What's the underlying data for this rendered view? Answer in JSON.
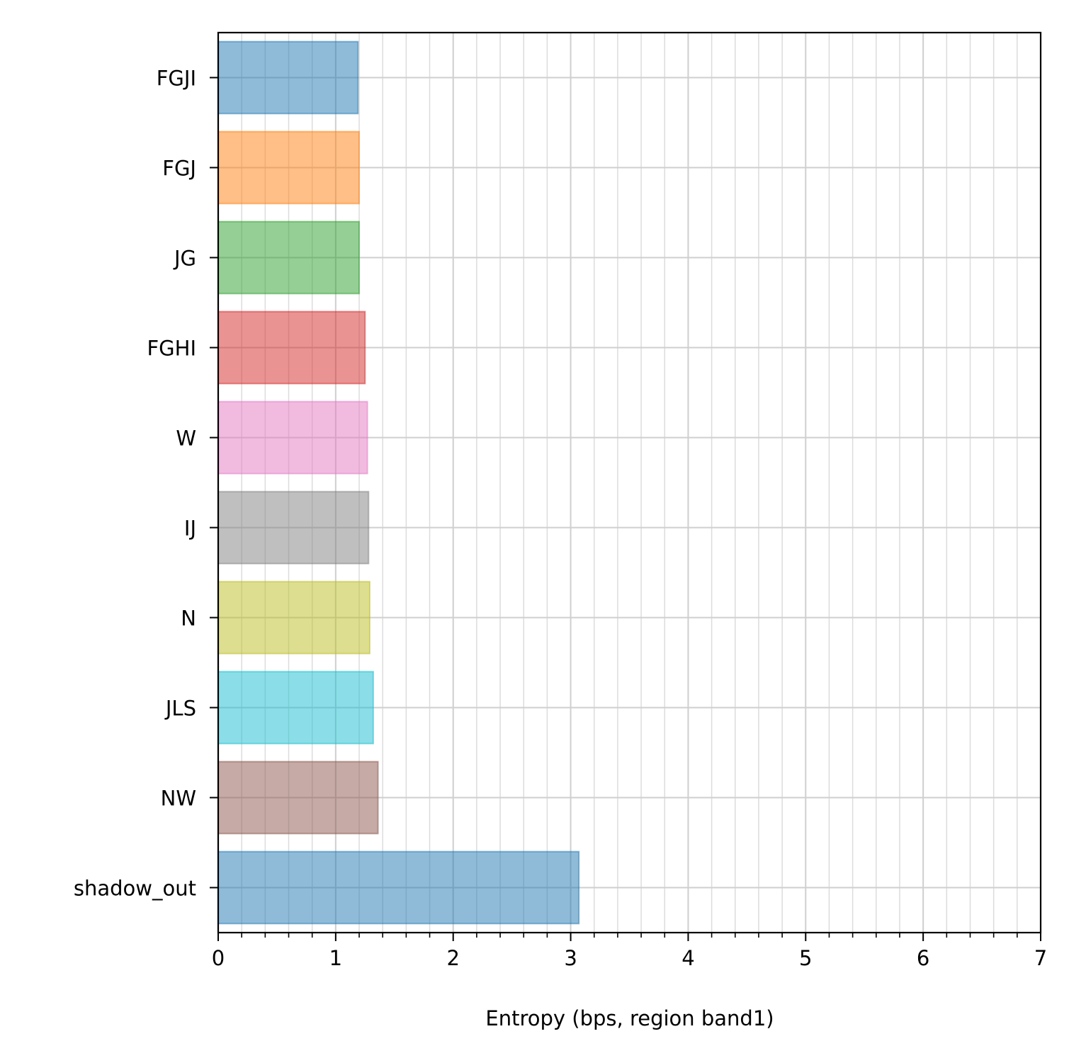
{
  "chart_data": {
    "type": "bar",
    "orientation": "horizontal",
    "title": "",
    "xlabel": "Entropy (bps, region band1)",
    "ylabel": "",
    "xlim": [
      0,
      7
    ],
    "x_ticks": [
      0,
      1,
      2,
      3,
      4,
      5,
      6,
      7
    ],
    "x_tick_labels": [
      "0",
      "1",
      "2",
      "3",
      "4",
      "5",
      "6",
      "7"
    ],
    "x_minor_step": 0.2,
    "grid": true,
    "legend": "none",
    "categories": [
      "FGJI",
      "FGJ",
      "JG",
      "FGHI",
      "W",
      "IJ",
      "N",
      "JLS",
      "NW",
      "shadow_out"
    ],
    "values": [
      1.19,
      1.2,
      1.2,
      1.25,
      1.27,
      1.28,
      1.29,
      1.32,
      1.36,
      3.07
    ],
    "colors": [
      "#1f77b4",
      "#ff7f0e",
      "#2ca02c",
      "#d62728",
      "#e377c2",
      "#7f7f7f",
      "#bcbd22",
      "#17becf",
      "#8c564b",
      "#1f77b4"
    ]
  }
}
